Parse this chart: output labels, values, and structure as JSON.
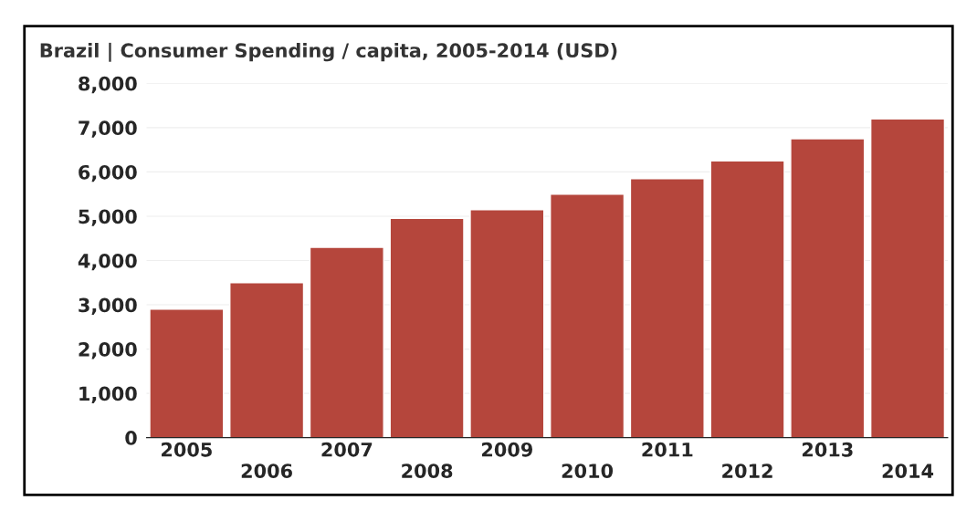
{
  "chart_data": {
    "type": "bar",
    "title": "Brazil | Consumer Spending / capita, 2005-2014 (USD)",
    "categories": [
      "2005",
      "2006",
      "2007",
      "2008",
      "2009",
      "2010",
      "2011",
      "2012",
      "2013",
      "2014"
    ],
    "values": [
      2900,
      3500,
      4300,
      4950,
      5150,
      5500,
      5850,
      6250,
      6750,
      7200
    ],
    "color": "#b5463c",
    "ylim": [
      0,
      8000
    ],
    "yticks": [
      {
        "value": 0,
        "label": "0"
      },
      {
        "value": 1000,
        "label": "1,000"
      },
      {
        "value": 2000,
        "label": "2,000"
      },
      {
        "value": 3000,
        "label": "3,000"
      },
      {
        "value": 4000,
        "label": "4,000"
      },
      {
        "value": 5000,
        "label": "5,000"
      },
      {
        "value": 6000,
        "label": "6,000"
      },
      {
        "value": 7000,
        "label": "7,000"
      },
      {
        "value": 8000,
        "label": "8,000"
      }
    ],
    "grid": "y"
  }
}
